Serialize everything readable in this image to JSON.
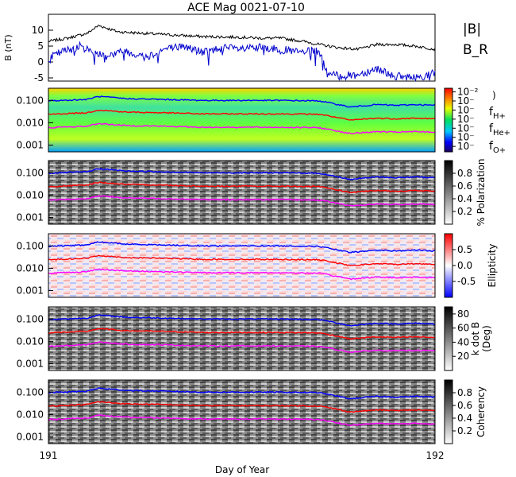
{
  "figure": {
    "title": "ACE Mag 0021-07-10",
    "xlabel": "Day of Year",
    "x_ticks": [
      "191",
      "192"
    ]
  },
  "chart_data": [
    {
      "type": "line",
      "title": "ACE Mag 0021-07-10",
      "xlabel": "Day of Year",
      "ylabel": "B (nT)",
      "xlim": [
        191,
        192
      ],
      "ylim": [
        -6,
        15
      ],
      "y_ticks": [
        "10",
        "5",
        "0",
        "-5"
      ],
      "legend": [
        "|B|",
        "B_R"
      ],
      "series": [
        {
          "name": "|B|",
          "color": "#000000",
          "x": [
            191.0,
            191.05,
            191.1,
            191.13,
            191.18,
            191.25,
            191.32,
            191.4,
            191.5,
            191.55,
            191.6,
            191.66,
            191.7,
            191.75,
            191.8,
            191.85,
            191.9,
            191.95,
            192.0
          ],
          "values": [
            6.5,
            7.5,
            9.0,
            11.5,
            9.5,
            9.0,
            8.5,
            8.0,
            7.8,
            7.5,
            7.5,
            6.5,
            5.5,
            4.5,
            4.0,
            5.5,
            5.5,
            5.0,
            4.0
          ]
        },
        {
          "name": "B_R",
          "color": "#0000cc",
          "x": [
            191.0,
            191.03,
            191.08,
            191.12,
            191.15,
            191.2,
            191.25,
            191.3,
            191.35,
            191.4,
            191.45,
            191.5,
            191.55,
            191.6,
            191.65,
            191.7,
            191.72,
            191.75,
            191.8,
            191.85,
            191.9,
            191.95,
            192.0
          ],
          "values": [
            1.0,
            3.0,
            5.0,
            3.0,
            2.0,
            3.5,
            1.5,
            4.0,
            5.0,
            3.0,
            4.5,
            4.0,
            4.5,
            4.0,
            3.0,
            3.5,
            -3.5,
            -4.5,
            -4.0,
            -2.0,
            -4.5,
            -5.0,
            -3.5
          ]
        }
      ]
    },
    {
      "type": "heatmap",
      "xlim": [
        191,
        192
      ],
      "ylim": [
        0.0005,
        0.35
      ],
      "y_scale": "log",
      "y_ticks": [
        "0.100",
        "0.010",
        "0.001"
      ],
      "colorbar": {
        "label": ")",
        "ticks": [
          "10⁻²",
          "10⁻",
          "10⁻",
          "10⁻",
          "10⁻",
          "10⁻",
          "10⁻"
        ],
        "colormap": "rainbow"
      },
      "legend": [
        "f_H+",
        "f_He+",
        "f_O+"
      ],
      "series": [
        {
          "name": "f_H+",
          "color": "#0000ff",
          "x": [
            191.0,
            191.1,
            191.13,
            191.2,
            191.3,
            191.4,
            191.5,
            191.6,
            191.7,
            191.74,
            191.78,
            191.85,
            191.9,
            191.95,
            192.0
          ],
          "values": [
            0.095,
            0.11,
            0.15,
            0.12,
            0.11,
            0.1,
            0.1,
            0.1,
            0.095,
            0.07,
            0.05,
            0.065,
            0.06,
            0.065,
            0.06
          ]
        },
        {
          "name": "f_He+",
          "color": "#ff0000",
          "x": [
            191.0,
            191.1,
            191.13,
            191.2,
            191.3,
            191.4,
            191.5,
            191.6,
            191.7,
            191.74,
            191.78,
            191.85,
            191.9,
            191.95,
            192.0
          ],
          "values": [
            0.024,
            0.028,
            0.037,
            0.03,
            0.028,
            0.025,
            0.025,
            0.025,
            0.024,
            0.018,
            0.013,
            0.016,
            0.015,
            0.016,
            0.015
          ]
        },
        {
          "name": "f_O+",
          "color": "#ff00ff",
          "x": [
            191.0,
            191.1,
            191.13,
            191.2,
            191.3,
            191.4,
            191.5,
            191.6,
            191.7,
            191.74,
            191.78,
            191.85,
            191.9,
            191.95,
            192.0
          ],
          "values": [
            0.006,
            0.007,
            0.0092,
            0.0075,
            0.007,
            0.0063,
            0.0063,
            0.0063,
            0.006,
            0.0045,
            0.0033,
            0.004,
            0.0038,
            0.004,
            0.0038
          ]
        }
      ]
    },
    {
      "type": "heatmap",
      "xlim": [
        191,
        192
      ],
      "ylim": [
        0.0005,
        0.35
      ],
      "y_scale": "log",
      "y_ticks": [
        "0.100",
        "0.010",
        "0.001"
      ],
      "colorbar": {
        "label": "% Polarization",
        "ticks": [
          "0.8",
          "0.6",
          "0.4",
          "0.2"
        ],
        "range": [
          0,
          1
        ],
        "colormap": "gray"
      }
    },
    {
      "type": "heatmap",
      "xlim": [
        191,
        192
      ],
      "ylim": [
        0.0005,
        0.35
      ],
      "y_scale": "log",
      "y_ticks": [
        "0.100",
        "0.010",
        "0.001"
      ],
      "colorbar": {
        "label": "Ellipticity",
        "ticks": [
          "0.5",
          "0.0",
          "-0.5"
        ],
        "range": [
          -1,
          1
        ],
        "colormap": "blue-white-red"
      }
    },
    {
      "type": "heatmap",
      "xlim": [
        191,
        192
      ],
      "ylim": [
        0.0005,
        0.35
      ],
      "y_scale": "log",
      "y_ticks": [
        "0.100",
        "0.010",
        "0.001"
      ],
      "colorbar": {
        "label": "k dot B (Deg)",
        "ticks": [
          "80",
          "60",
          "40",
          "20"
        ],
        "range": [
          0,
          90
        ],
        "colormap": "gray"
      }
    },
    {
      "type": "heatmap",
      "xlim": [
        191,
        192
      ],
      "ylim": [
        0.0005,
        0.35
      ],
      "y_scale": "log",
      "y_ticks": [
        "0.100",
        "0.010",
        "0.001"
      ],
      "colorbar": {
        "label": "Coherency",
        "ticks": [
          "0.8",
          "0.6",
          "0.4",
          "0.2"
        ],
        "range": [
          0,
          1
        ],
        "colormap": "gray"
      }
    }
  ],
  "colors": {
    "absB": "#000000",
    "BR": "#0000cc",
    "fH": "#0000ff",
    "fHe": "#ff0000",
    "fO": "#ff00ff"
  }
}
